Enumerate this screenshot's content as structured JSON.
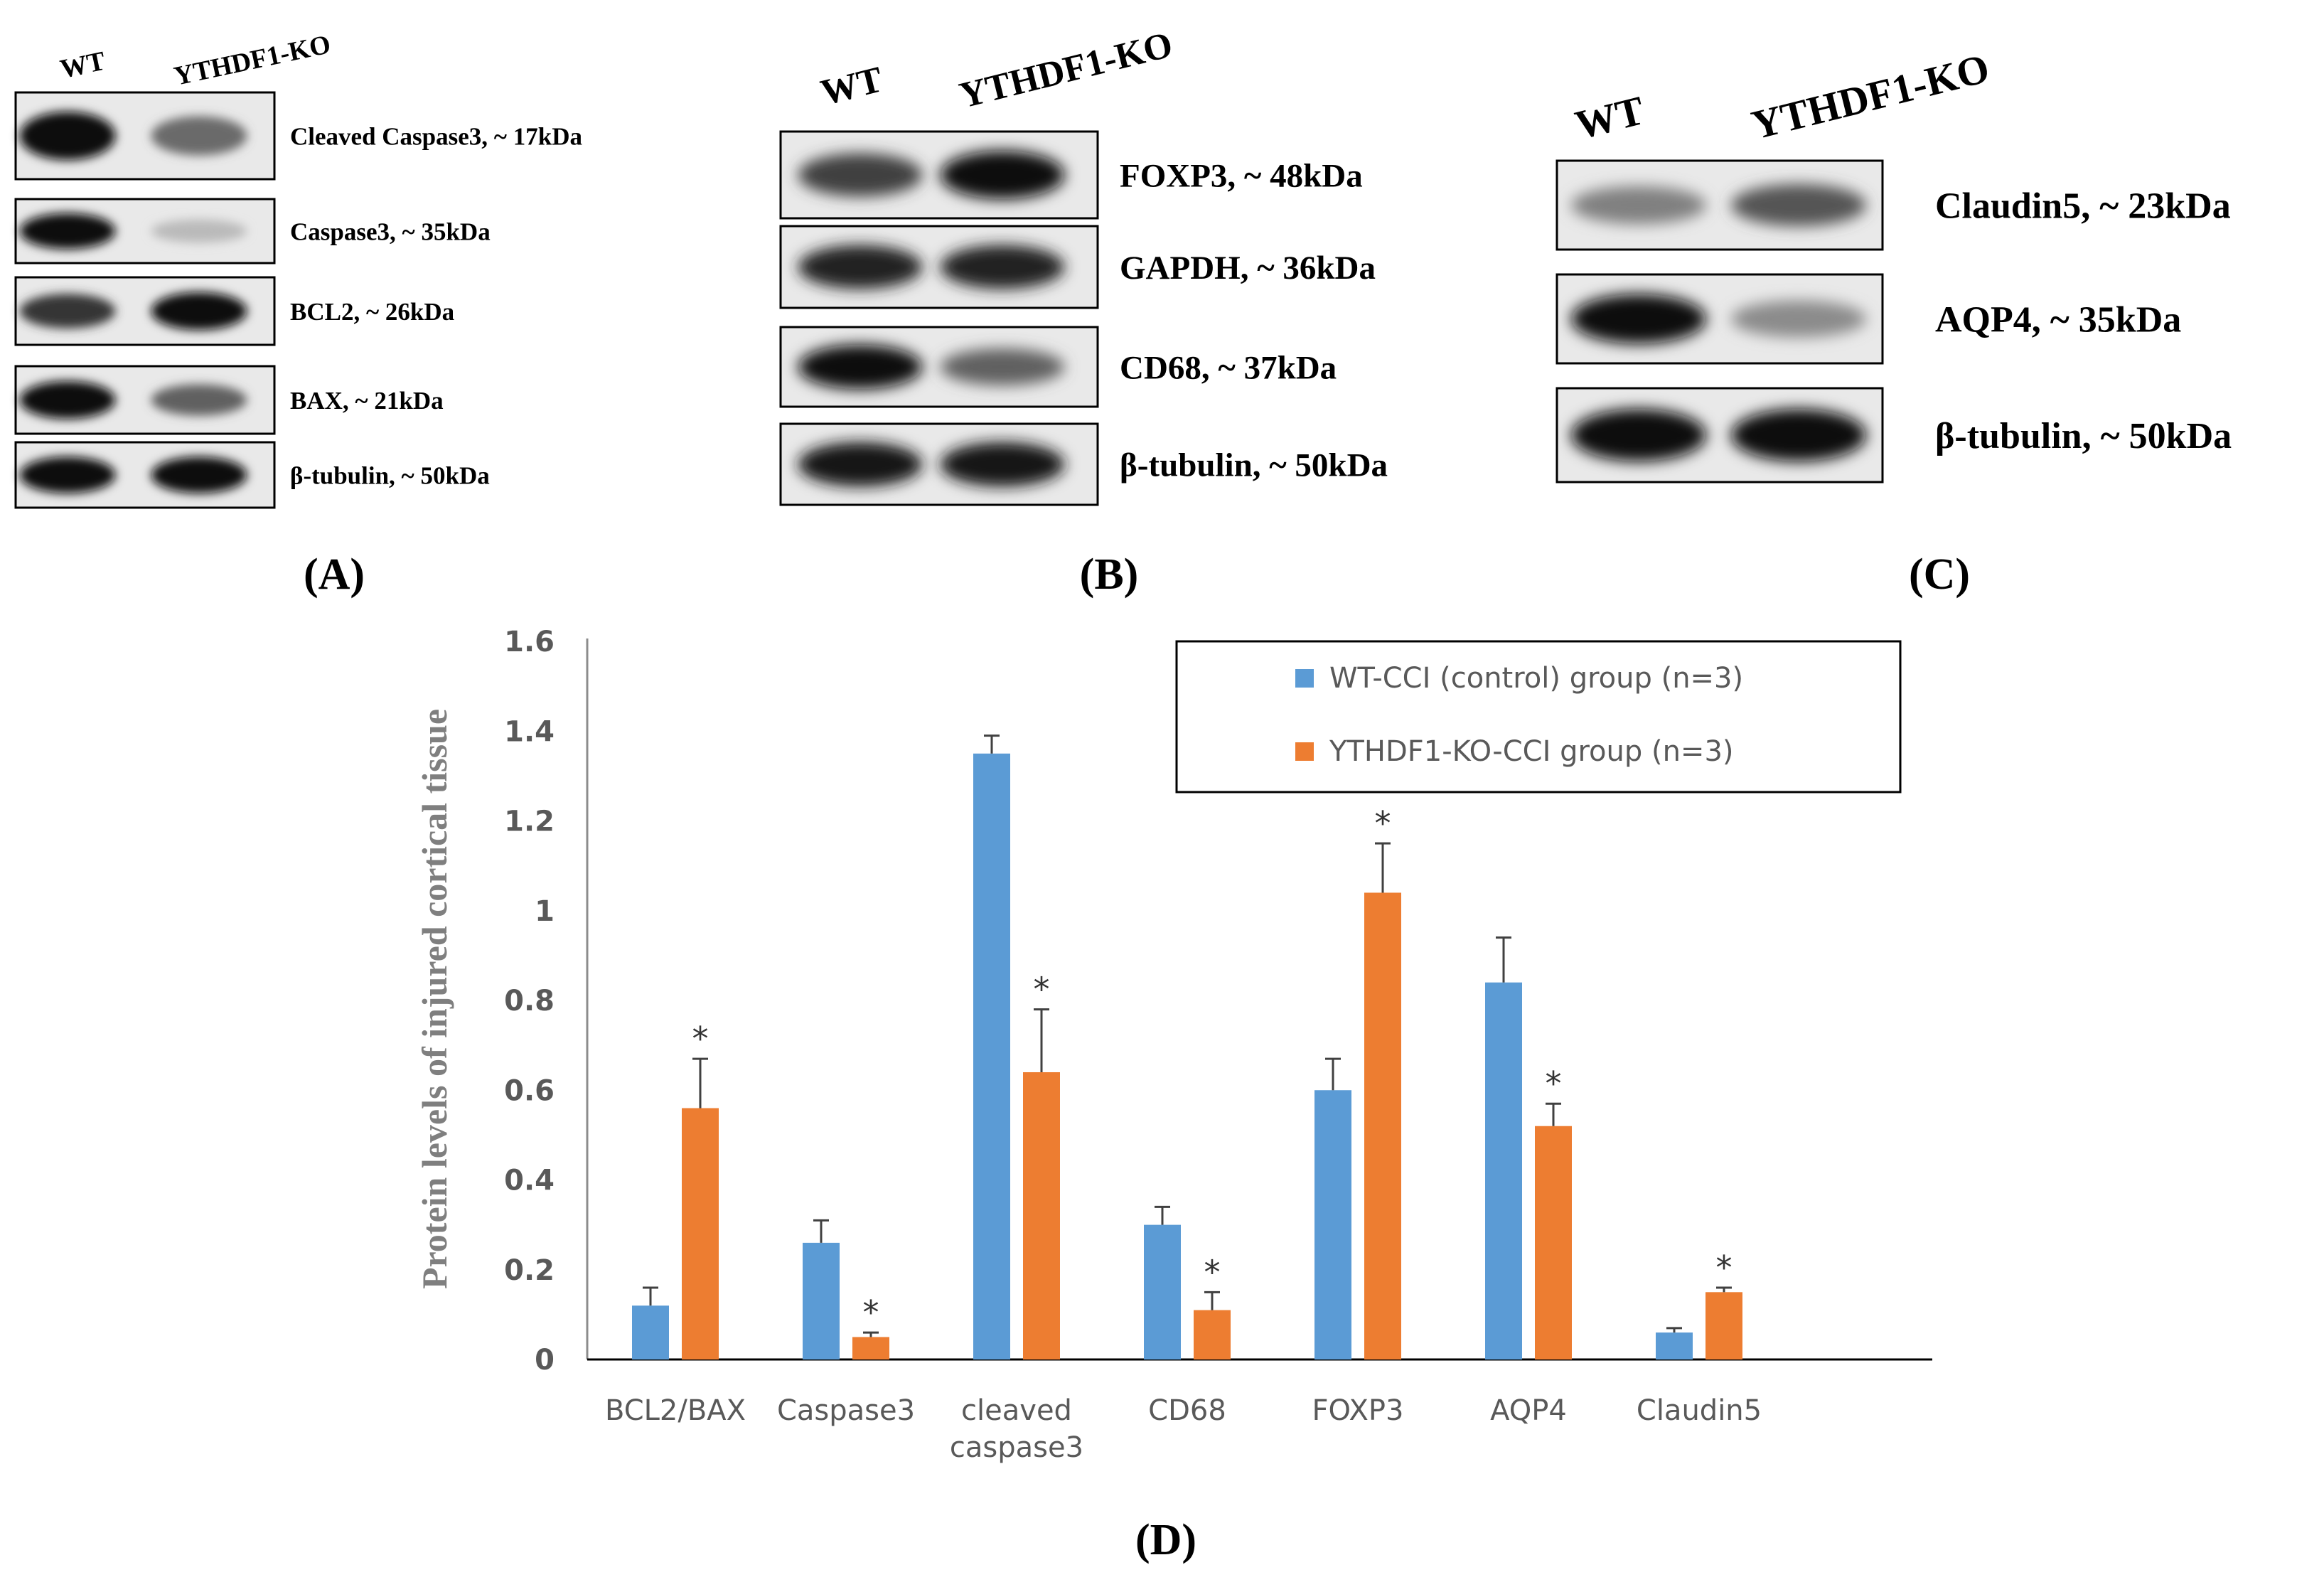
{
  "panels": {
    "A": {
      "label": "(A)",
      "columns": [
        "WT",
        "YTHDF1-KO"
      ],
      "blots": [
        {
          "label": "Cleaved Caspase3, ~ 17kDa",
          "wt": 1.0,
          "ko": 0.55
        },
        {
          "label": "Caspase3, ~ 35kDa",
          "wt": 1.0,
          "ko": 0.18
        },
        {
          "label": "BCL2, ~ 26kDa",
          "wt": 0.8,
          "ko": 1.0
        },
        {
          "label": "BAX, ~ 21kDa",
          "wt": 1.0,
          "ko": 0.6
        },
        {
          "label": "β-tubulin, ~ 50kDa",
          "wt": 1.0,
          "ko": 1.0
        }
      ]
    },
    "B": {
      "label": "(B)",
      "columns": [
        "WT",
        "YTHDF1-KO"
      ],
      "blots": [
        {
          "label": "FOXP3, ~ 48kDa",
          "wt": 0.75,
          "ko": 1.0
        },
        {
          "label": "GAPDH, ~ 36kDa",
          "wt": 0.9,
          "ko": 0.9
        },
        {
          "label": "CD68, ~ 37kDa",
          "wt": 1.0,
          "ko": 0.6
        },
        {
          "label": "β-tubulin, ~ 50kDa",
          "wt": 0.95,
          "ko": 0.95
        }
      ]
    },
    "C": {
      "label": "(C)",
      "columns": [
        "WT",
        "YTHDF1-KO"
      ],
      "blots": [
        {
          "label": "Claudin5, ~ 23kDa",
          "wt": 0.45,
          "ko": 0.65
        },
        {
          "label": "AQP4, ~ 35kDa",
          "wt": 1.0,
          "ko": 0.4
        },
        {
          "label": "β-tubulin, ~ 50kDa",
          "wt": 1.0,
          "ko": 1.0
        }
      ]
    }
  },
  "panel_d_label": "(D)",
  "chart_data": {
    "type": "bar",
    "title": "",
    "xlabel": "",
    "ylabel": "Protein levels of injured cortical tissue",
    "ylim": [
      0,
      1.6
    ],
    "yticks": [
      "0",
      "0.2",
      "0.4",
      "0.6",
      "0.8",
      "1",
      "1.2",
      "1.4",
      "1.6"
    ],
    "ytick_values": [
      0,
      0.2,
      0.4,
      0.6,
      0.8,
      1.0,
      1.2,
      1.4,
      1.6
    ],
    "categories": [
      "BCL2/BAX",
      "Caspase3",
      "cleaved caspase3",
      "CD68",
      "FOXP3",
      "AQP4",
      "Claudin5"
    ],
    "category_lines": [
      [
        "BCL2/BAX"
      ],
      [
        "Caspase3"
      ],
      [
        "cleaved",
        "caspase3"
      ],
      [
        "CD68"
      ],
      [
        "FOXP3"
      ],
      [
        "AQP4"
      ],
      [
        "Claudin5"
      ]
    ],
    "series": [
      {
        "name": "WT-CCI (control) group (n=3)",
        "color": "#5b9bd5",
        "values": [
          0.12,
          0.26,
          1.35,
          0.3,
          0.6,
          0.84,
          0.06
        ],
        "errors": [
          0.04,
          0.05,
          0.04,
          0.04,
          0.07,
          0.1,
          0.01
        ],
        "significance": [
          "",
          "",
          "",
          "",
          "",
          "",
          ""
        ]
      },
      {
        "name": "YTHDF1-KO-CCI group (n=3)",
        "color": "#ed7d31",
        "values": [
          0.56,
          0.05,
          0.64,
          0.11,
          1.04,
          0.52,
          0.15
        ],
        "errors": [
          0.11,
          0.01,
          0.14,
          0.04,
          0.11,
          0.05,
          0.01
        ],
        "significance": [
          "*",
          "*",
          "*",
          "*",
          "*",
          "*",
          "*"
        ]
      }
    ],
    "legend_position": "top-right"
  }
}
